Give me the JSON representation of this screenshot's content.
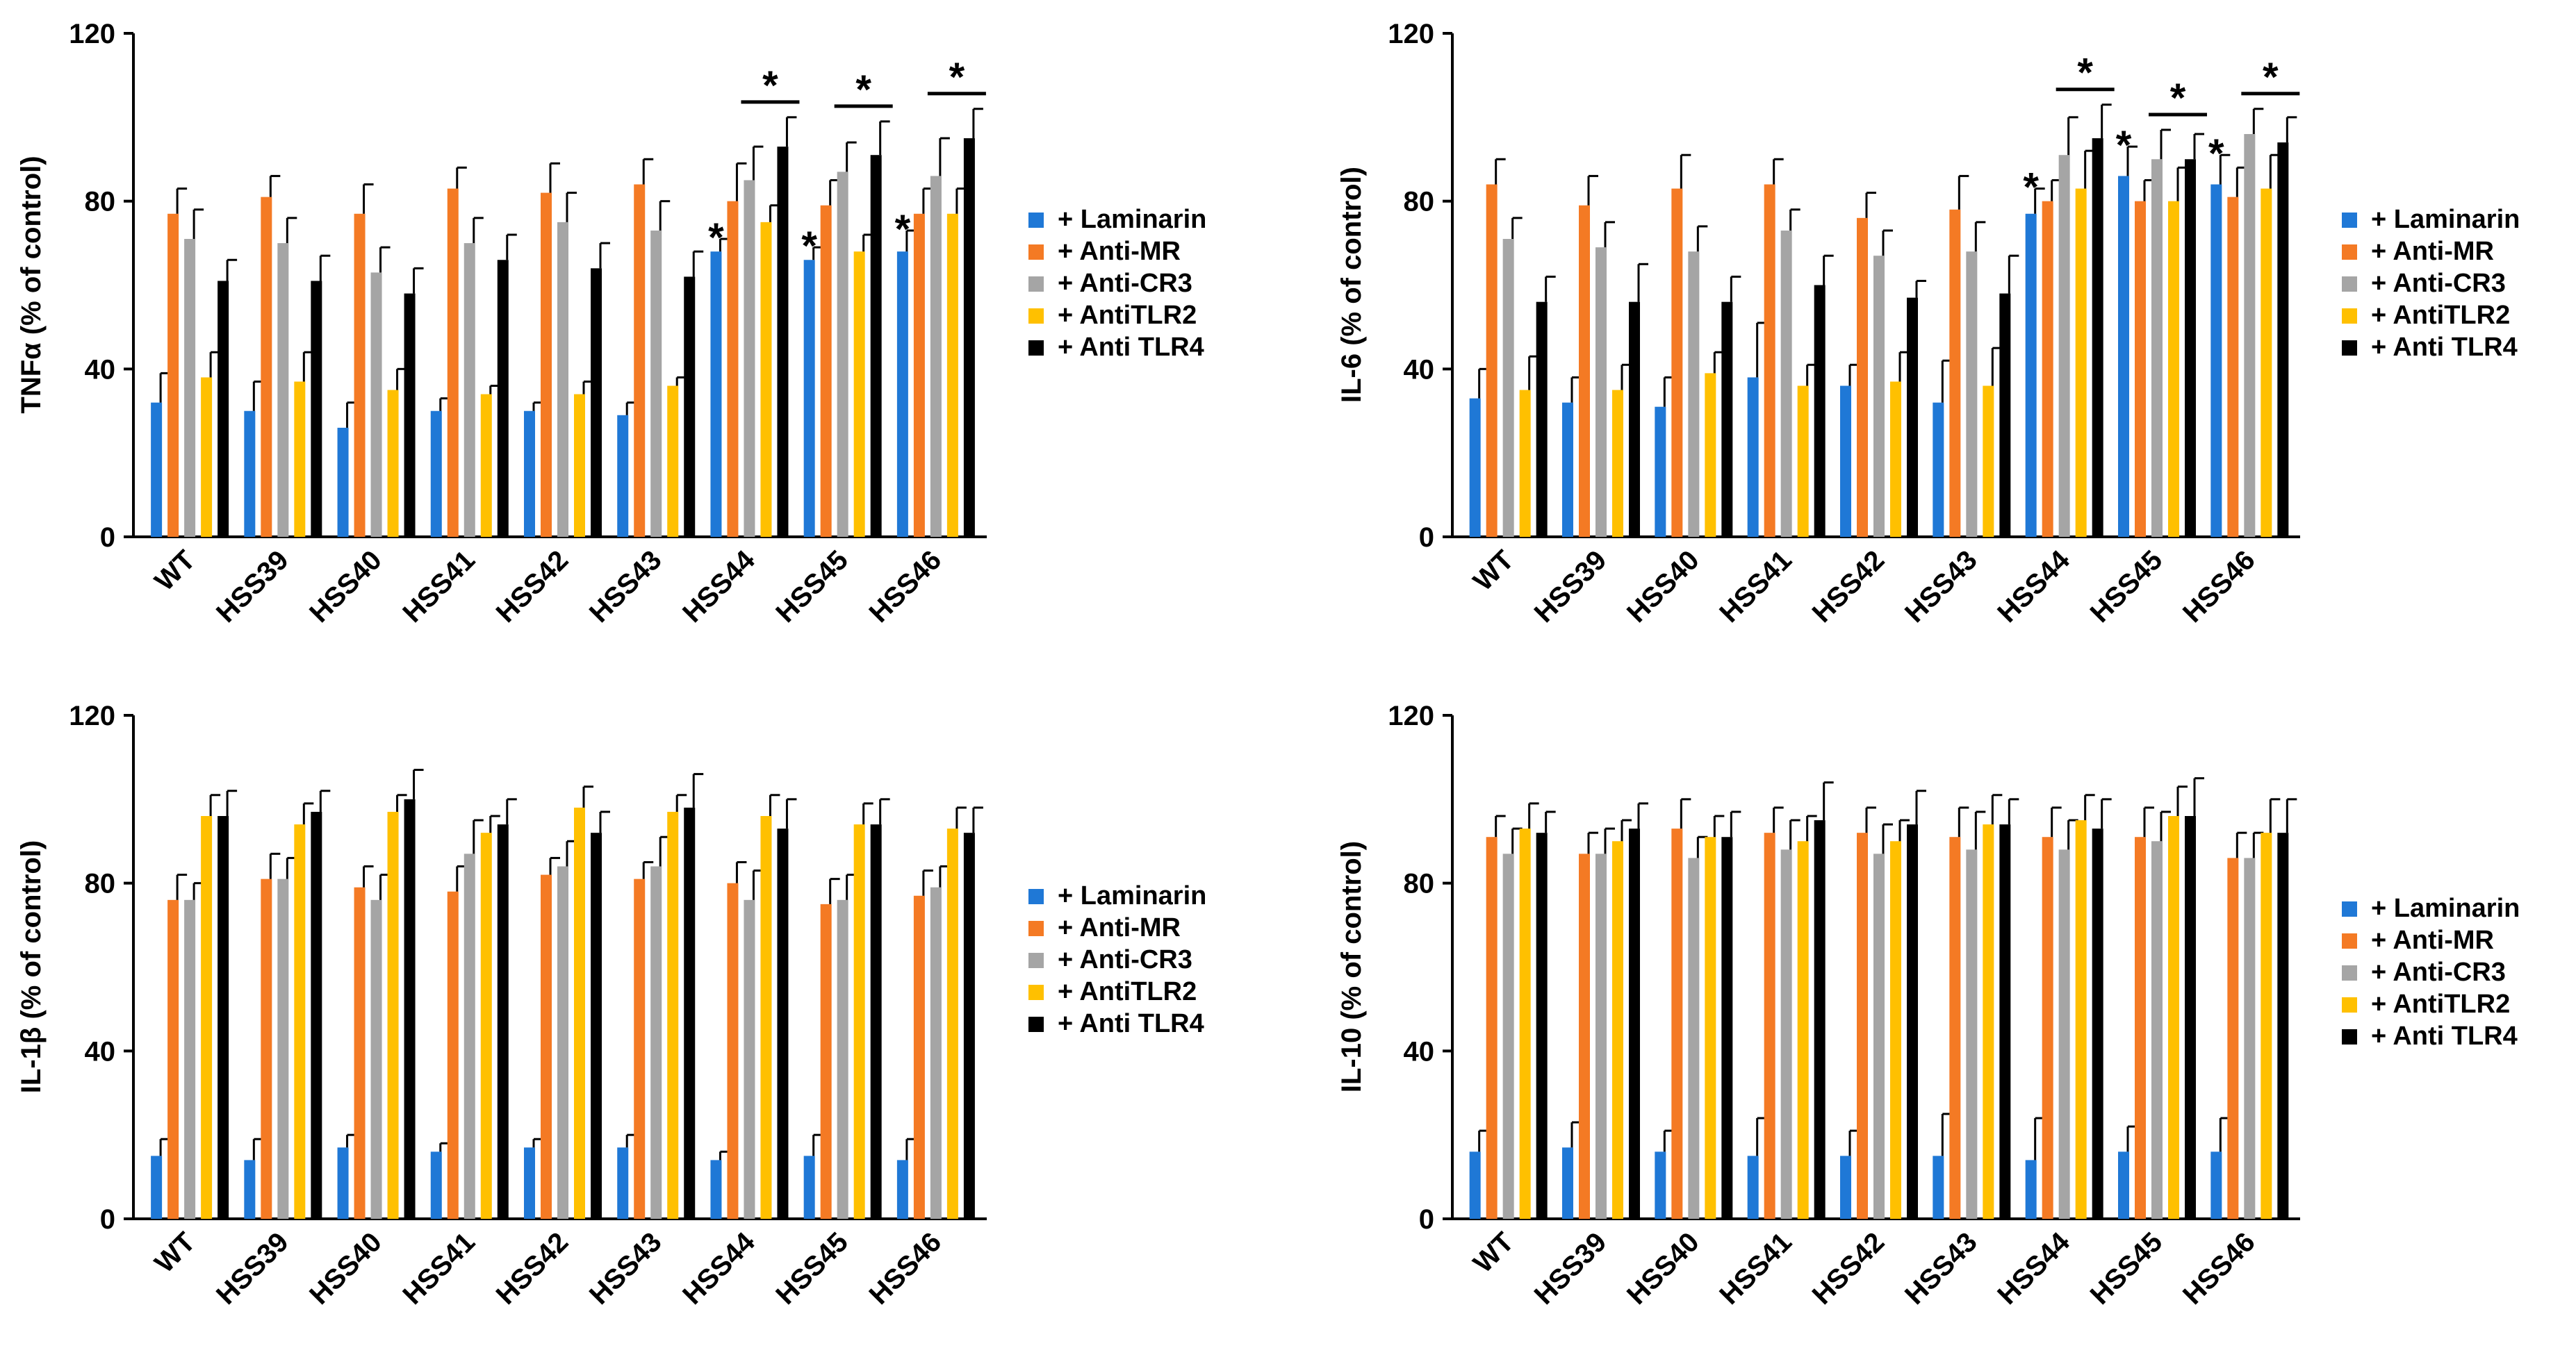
{
  "chart_data": [
    {
      "type": "bar",
      "ylabel": "TNFα (% of control)",
      "ylim": [
        0,
        120
      ],
      "yticks": [
        "0",
        "40",
        "80",
        "120"
      ],
      "categories": [
        "WT",
        "HSS39",
        "HSS40",
        "HSS41",
        "HSS42",
        "HSS43",
        "HSS44",
        "HSS45",
        "HSS46"
      ],
      "series": [
        {
          "name": "+ Laminarin",
          "color": "#1F78D6",
          "values": [
            32,
            30,
            26,
            30,
            30,
            29,
            68,
            66,
            68
          ],
          "errors": [
            7,
            7,
            6,
            3,
            2,
            3,
            3,
            3,
            5
          ]
        },
        {
          "name": "+ Anti-MR",
          "color": "#F47A24",
          "values": [
            77,
            81,
            77,
            83,
            82,
            84,
            80,
            79,
            77
          ],
          "errors": [
            6,
            5,
            7,
            5,
            7,
            6,
            9,
            6,
            6
          ]
        },
        {
          "name": "+ Anti-CR3",
          "color": "#A5A5A5",
          "values": [
            71,
            70,
            63,
            70,
            75,
            73,
            85,
            87,
            86
          ],
          "errors": [
            7,
            6,
            6,
            6,
            7,
            7,
            8,
            7,
            9
          ]
        },
        {
          "name": "+ AntiTLR2",
          "color": "#FFC000",
          "values": [
            38,
            37,
            35,
            34,
            34,
            36,
            75,
            68,
            77
          ],
          "errors": [
            6,
            7,
            5,
            2,
            3,
            2,
            4,
            4,
            6
          ]
        },
        {
          "name": "+ Anti TLR4",
          "color": "#000000",
          "values": [
            61,
            61,
            58,
            66,
            64,
            62,
            93,
            91,
            95
          ],
          "errors": [
            5,
            6,
            6,
            6,
            6,
            6,
            7,
            8,
            7
          ]
        }
      ],
      "group_stars": [
        "*",
        "*",
        "*"
      ],
      "bracket_stars": [
        "*",
        "*",
        "*"
      ],
      "legend": "right"
    },
    {
      "type": "bar",
      "ylabel": "IL-6 (% of control)",
      "ylim": [
        0,
        120
      ],
      "yticks": [
        "0",
        "40",
        "80",
        "120"
      ],
      "categories": [
        "WT",
        "HSS39",
        "HSS40",
        "HSS41",
        "HSS42",
        "HSS43",
        "HSS44",
        "HSS45",
        "HSS46"
      ],
      "series": [
        {
          "name": "+ Laminarin",
          "color": "#1F78D6",
          "values": [
            33,
            32,
            31,
            38,
            36,
            32,
            77,
            86,
            84
          ],
          "errors": [
            7,
            6,
            7,
            13,
            5,
            10,
            6,
            7,
            7
          ]
        },
        {
          "name": "+ Anti-MR",
          "color": "#F47A24",
          "values": [
            84,
            79,
            83,
            84,
            76,
            78,
            80,
            80,
            81
          ],
          "errors": [
            6,
            7,
            8,
            6,
            6,
            8,
            5,
            5,
            7
          ]
        },
        {
          "name": "+ Anti-CR3",
          "color": "#A5A5A5",
          "values": [
            71,
            69,
            68,
            73,
            67,
            68,
            91,
            90,
            96
          ],
          "errors": [
            5,
            6,
            6,
            5,
            6,
            7,
            9,
            7,
            6
          ]
        },
        {
          "name": "+ AntiTLR2",
          "color": "#FFC000",
          "values": [
            35,
            35,
            39,
            36,
            37,
            36,
            83,
            80,
            83
          ],
          "errors": [
            8,
            6,
            5,
            5,
            7,
            9,
            9,
            8,
            8
          ]
        },
        {
          "name": "+ Anti TLR4",
          "color": "#000000",
          "values": [
            56,
            56,
            56,
            60,
            57,
            58,
            95,
            90,
            94
          ],
          "errors": [
            6,
            9,
            6,
            7,
            4,
            9,
            8,
            6,
            6
          ]
        }
      ],
      "group_stars": [
        "*",
        "*",
        "*"
      ],
      "bracket_stars": [
        "*",
        "*",
        "*"
      ],
      "legend": "right"
    },
    {
      "type": "bar",
      "ylabel": "IL-1β (% of control)",
      "ylim": [
        0,
        120
      ],
      "yticks": [
        "0",
        "40",
        "80",
        "120"
      ],
      "categories": [
        "WT",
        "HSS39",
        "HSS40",
        "HSS41",
        "HSS42",
        "HSS43",
        "HSS44",
        "HSS45",
        "HSS46"
      ],
      "series": [
        {
          "name": "+ Laminarin",
          "color": "#1F78D6",
          "values": [
            15,
            14,
            17,
            16,
            17,
            17,
            14,
            15,
            14
          ],
          "errors": [
            4,
            5,
            3,
            2,
            2,
            3,
            2,
            5,
            5
          ]
        },
        {
          "name": "+ Anti-MR",
          "color": "#F47A24",
          "values": [
            76,
            81,
            79,
            78,
            82,
            81,
            80,
            75,
            77
          ],
          "errors": [
            6,
            6,
            5,
            6,
            4,
            4,
            5,
            6,
            6
          ]
        },
        {
          "name": "+ Anti-CR3",
          "color": "#A5A5A5",
          "values": [
            76,
            81,
            76,
            87,
            84,
            84,
            76,
            76,
            79
          ],
          "errors": [
            4,
            5,
            6,
            8,
            6,
            7,
            7,
            6,
            5
          ]
        },
        {
          "name": "+ AntiTLR2",
          "color": "#FFC000",
          "values": [
            96,
            94,
            97,
            92,
            98,
            97,
            96,
            94,
            93
          ],
          "errors": [
            5,
            5,
            4,
            4,
            5,
            4,
            5,
            5,
            5
          ]
        },
        {
          "name": "+ Anti TLR4",
          "color": "#000000",
          "values": [
            96,
            97,
            100,
            94,
            92,
            98,
            93,
            94,
            92
          ],
          "errors": [
            6,
            5,
            7,
            6,
            5,
            8,
            7,
            6,
            6
          ]
        }
      ],
      "legend": "right"
    },
    {
      "type": "bar",
      "ylabel": "IL-10 (% of control)",
      "ylim": [
        0,
        120
      ],
      "yticks": [
        "0",
        "40",
        "80",
        "120"
      ],
      "categories": [
        "WT",
        "HSS39",
        "HSS40",
        "HSS41",
        "HSS42",
        "HSS43",
        "HSS44",
        "HSS45",
        "HSS46"
      ],
      "series": [
        {
          "name": "+ Laminarin",
          "color": "#1F78D6",
          "values": [
            16,
            17,
            16,
            15,
            15,
            15,
            14,
            16,
            16
          ],
          "errors": [
            5,
            6,
            5,
            9,
            6,
            10,
            10,
            6,
            8
          ]
        },
        {
          "name": "+ Anti-MR",
          "color": "#F47A24",
          "values": [
            91,
            87,
            93,
            92,
            92,
            91,
            91,
            91,
            86
          ],
          "errors": [
            5,
            5,
            7,
            6,
            6,
            7,
            7,
            7,
            6
          ]
        },
        {
          "name": "+ Anti-CR3",
          "color": "#A5A5A5",
          "values": [
            87,
            87,
            86,
            88,
            87,
            88,
            88,
            90,
            86
          ],
          "errors": [
            6,
            6,
            5,
            7,
            7,
            9,
            7,
            7,
            6
          ]
        },
        {
          "name": "+ AntiTLR2",
          "color": "#FFC000",
          "values": [
            93,
            90,
            91,
            90,
            90,
            94,
            95,
            96,
            92
          ],
          "errors": [
            6,
            5,
            5,
            6,
            5,
            7,
            6,
            7,
            8
          ]
        },
        {
          "name": "+ Anti TLR4",
          "color": "#000000",
          "values": [
            92,
            93,
            91,
            95,
            94,
            94,
            93,
            96,
            92
          ],
          "errors": [
            5,
            6,
            6,
            9,
            8,
            6,
            7,
            9,
            8
          ]
        }
      ],
      "legend": "right"
    }
  ]
}
